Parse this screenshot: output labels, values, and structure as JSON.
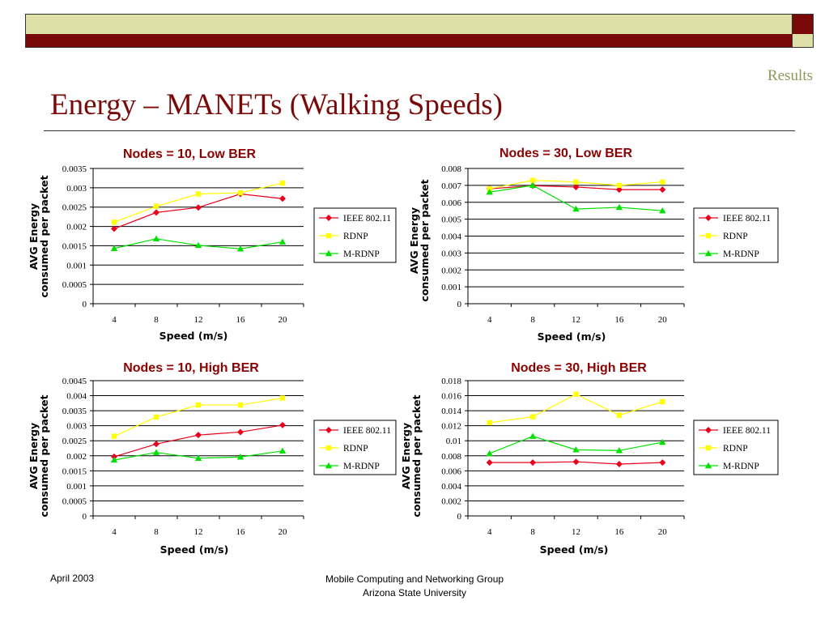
{
  "slide": {
    "section": "Results",
    "title": "Energy – MANETs (Walking Speeds)",
    "footer_date": "April 2003",
    "footer_org_line1": "Mobile Computing and Networking Group",
    "footer_org_line2": "Arizona State University"
  },
  "colors": {
    "ieee": "#e8001c",
    "rdnp": "#ffff00",
    "mrdnp": "#00e000",
    "title": "#7a0a0a",
    "section": "#8a9a5b"
  },
  "chart_data": [
    {
      "type": "line",
      "title": "Nodes = 10,  Low BER",
      "xlabel": "Speed (m/s)",
      "ylabel_line1": "AVG Energy",
      "ylabel_line2": "consumed per packet",
      "categories": [
        "4",
        "8",
        "12",
        "16",
        "20"
      ],
      "yticks": [
        "0",
        "0.0005",
        "0.001",
        "0.0015",
        "0.002",
        "0.0025",
        "0.003",
        "0.0035"
      ],
      "ylim": [
        0,
        0.0035
      ],
      "grid": true,
      "legend_position": "right",
      "series": [
        {
          "name": "IEEE 802.11",
          "values": [
            0.00194,
            0.00236,
            0.00249,
            0.00284,
            0.00272
          ]
        },
        {
          "name": "RDNP",
          "values": [
            0.00211,
            0.00252,
            0.00284,
            0.00287,
            0.00312
          ]
        },
        {
          "name": "M-RDNP",
          "values": [
            0.00143,
            0.00168,
            0.00151,
            0.00142,
            0.0016
          ]
        }
      ]
    },
    {
      "type": "line",
      "title": "Nodes = 30,  Low BER",
      "xlabel": "Speed (m/s)",
      "ylabel_line1": "AVG Energy",
      "ylabel_line2": "consumed per packet",
      "categories": [
        "4",
        "8",
        "12",
        "16",
        "20"
      ],
      "yticks": [
        "0",
        "0.001",
        "0.002",
        "0.003",
        "0.004",
        "0.005",
        "0.006",
        "0.007",
        "0.008"
      ],
      "ylim": [
        0,
        0.008
      ],
      "grid": true,
      "legend_position": "right",
      "series": [
        {
          "name": "IEEE 802.11",
          "values": [
            0.0068,
            0.00698,
            0.0069,
            0.00675,
            0.00675
          ]
        },
        {
          "name": "RDNP",
          "values": [
            0.0068,
            0.0073,
            0.0072,
            0.007,
            0.0072
          ]
        },
        {
          "name": "M-RDNP",
          "values": [
            0.0066,
            0.007,
            0.0056,
            0.0057,
            0.0055
          ]
        }
      ]
    },
    {
      "type": "line",
      "title": "Nodes = 10,  High BER",
      "xlabel": "Speed (m/s)",
      "ylabel_line1": "AVG Energy",
      "ylabel_line2": "consumed per packet",
      "categories": [
        "4",
        "8",
        "12",
        "16",
        "20"
      ],
      "yticks": [
        "0",
        "0.0005",
        "0.001",
        "0.0015",
        "0.002",
        "0.0025",
        "0.003",
        "0.0035",
        "0.004",
        "0.0045"
      ],
      "ylim": [
        0,
        0.0045
      ],
      "grid": true,
      "legend_position": "right",
      "series": [
        {
          "name": "IEEE 802.11",
          "values": [
            0.00197,
            0.00239,
            0.00269,
            0.00279,
            0.00302
          ]
        },
        {
          "name": "RDNP",
          "values": [
            0.00265,
            0.00329,
            0.00369,
            0.00369,
            0.00392
          ]
        },
        {
          "name": "M-RDNP",
          "values": [
            0.00186,
            0.00211,
            0.00192,
            0.00196,
            0.00216
          ]
        }
      ]
    },
    {
      "type": "line",
      "title": "Nodes = 30,  High BER",
      "xlabel": "Speed (m/s)",
      "ylabel_line1": "AVG Energy",
      "ylabel_line2": "consumed per packet",
      "categories": [
        "4",
        "8",
        "12",
        "16",
        "20"
      ],
      "yticks": [
        "0",
        "0.002",
        "0.004",
        "0.006",
        "0.008",
        "0.01",
        "0.012",
        "0.014",
        "0.016",
        "0.018"
      ],
      "ylim": [
        0,
        0.018
      ],
      "grid": true,
      "legend_position": "right",
      "series": [
        {
          "name": "IEEE 802.11",
          "values": [
            0.0071,
            0.0071,
            0.0072,
            0.0069,
            0.0071
          ]
        },
        {
          "name": "RDNP",
          "values": [
            0.0124,
            0.0132,
            0.0162,
            0.0134,
            0.0152
          ]
        },
        {
          "name": "M-RDNP",
          "values": [
            0.0083,
            0.0106,
            0.0088,
            0.0087,
            0.0098
          ]
        }
      ]
    }
  ]
}
